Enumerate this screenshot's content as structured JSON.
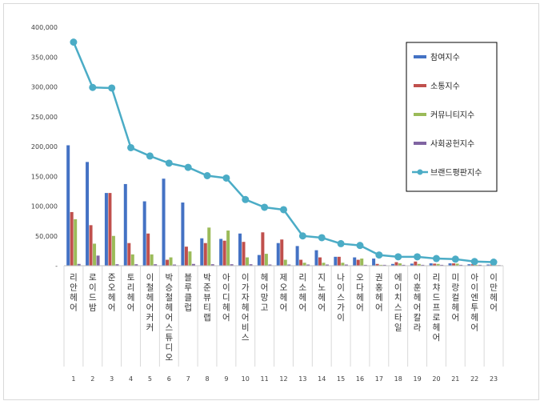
{
  "chart_data": {
    "type": "bar",
    "title": "",
    "xlabel": "",
    "ylabel": "",
    "ylim": [
      0,
      400000
    ],
    "ytick_labels": [
      "400,000",
      "350,000",
      "300,000",
      "250,000",
      "200,000",
      "150,000",
      "100,000",
      "50,000",
      "-"
    ],
    "yticks": [
      400000,
      350000,
      300000,
      250000,
      200000,
      150000,
      100000,
      50000,
      0
    ],
    "grid": false,
    "legend_position": "top-right",
    "categories": [
      "리안헤어",
      "로이드밤",
      "준오헤어",
      "토리헤어",
      "이철헤어커커",
      "박승철헤어스튜디오",
      "블루클럽",
      "박준뷰티랩",
      "아이디헤어",
      "이가자헤어비스",
      "헤어망고",
      "제오헤어",
      "리소헤어",
      "지노헤어",
      "나이스가이",
      "오다헤어",
      "권홍헤어",
      "에이치스타일",
      "이훈헤어칼라",
      "리챠드프로헤어",
      "미랑컬헤어",
      "아이엔투헤어",
      "이만헤어"
    ],
    "indices": [
      "1",
      "2",
      "3",
      "4",
      "5",
      "6",
      "7",
      "8",
      "9",
      "10",
      "11",
      "12",
      "13",
      "14",
      "15",
      "16",
      "17",
      "18",
      "19",
      "20",
      "21",
      "22",
      "23"
    ],
    "series": [
      {
        "name": "참여지수",
        "kind": "bar",
        "color": "#4472c4",
        "values": [
          202000,
          174000,
          122000,
          137000,
          108000,
          146000,
          106000,
          46000,
          45000,
          54000,
          18000,
          38000,
          33000,
          26000,
          15000,
          14000,
          12000,
          3000,
          3500,
          4000,
          4000,
          2500,
          2000
        ]
      },
      {
        "name": "소통지수",
        "kind": "bar",
        "color": "#c0504d",
        "values": [
          90000,
          68000,
          122000,
          38000,
          54000,
          10000,
          32000,
          38000,
          42000,
          40000,
          56000,
          44000,
          10000,
          14000,
          15000,
          10000,
          3000,
          6000,
          7000,
          3500,
          4000,
          2500,
          2000
        ]
      },
      {
        "name": "커뮤니티지수",
        "kind": "bar",
        "color": "#9bbb59",
        "values": [
          78000,
          37000,
          50000,
          19000,
          19000,
          14000,
          24000,
          64000,
          59000,
          14000,
          20000,
          10000,
          5000,
          5000,
          5000,
          12000,
          1500,
          4000,
          3000,
          3000,
          3500,
          1500,
          1000
        ]
      },
      {
        "name": "사회공헌지수",
        "kind": "bar",
        "color": "#8064a2",
        "values": [
          3000,
          17000,
          2500,
          2500,
          2500,
          2000,
          3000,
          2500,
          2500,
          2500,
          2000,
          2000,
          2000,
          2000,
          2000,
          1500,
          1500,
          1500,
          1500,
          1500,
          1500,
          1500,
          1000
        ]
      },
      {
        "name": "브랜드평판지수",
        "kind": "line",
        "color": "#4bacc6",
        "values": [
          375000,
          299000,
          298000,
          198000,
          184000,
          172000,
          165000,
          151000,
          147000,
          111000,
          98000,
          94000,
          50000,
          47000,
          37000,
          34000,
          18000,
          15000,
          15000,
          12000,
          11000,
          7000,
          6000
        ]
      }
    ]
  }
}
